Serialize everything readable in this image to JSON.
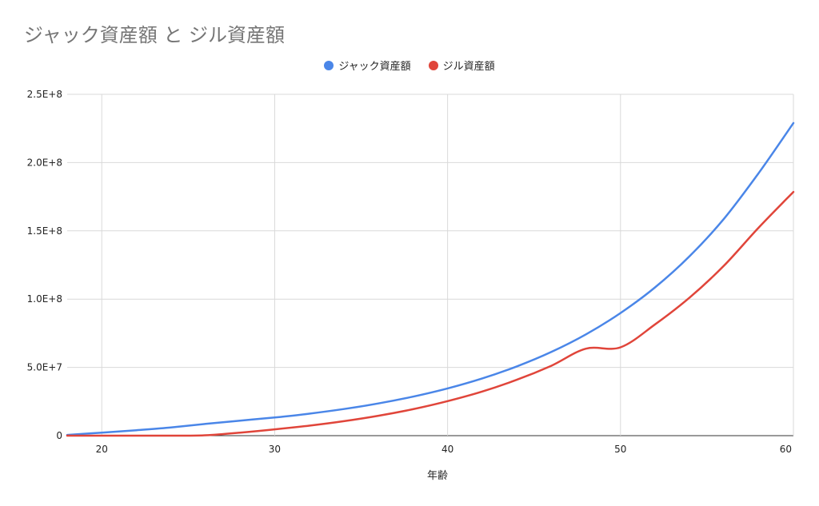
{
  "chart_data": {
    "type": "line",
    "title": "ジャック資産額 と ジル資産額",
    "xlabel": "年齢",
    "ylabel": "",
    "xlim": [
      18,
      60
    ],
    "ylim": [
      0,
      250000000
    ],
    "x_ticks": [
      20,
      30,
      40,
      50,
      60
    ],
    "y_ticks": [
      0,
      50000000,
      100000000,
      150000000,
      200000000,
      250000000
    ],
    "y_tick_labels": [
      "0",
      "5.0E+7",
      "1.0E+8",
      "1.5E+8",
      "2.0E+8",
      "2.5E+8"
    ],
    "grid": true,
    "legend_position": "top",
    "x": [
      18,
      20,
      22,
      24,
      26,
      28,
      30,
      32,
      34,
      36,
      38,
      40,
      42,
      44,
      46,
      48,
      50,
      52,
      54,
      56,
      58,
      60
    ],
    "series": [
      {
        "name": "ジャック資産額",
        "color": "#4a86e8",
        "values": [
          500000,
          2200000,
          4000000,
          6000000,
          8600000,
          11000000,
          13300000,
          16100000,
          19500000,
          23600000,
          28600000,
          34600000,
          41900000,
          50700000,
          61300000,
          74200000,
          89800000,
          108600000,
          131500000,
          159100000,
          192500000,
          229000000
        ]
      },
      {
        "name": "ジル資産額",
        "color": "#e0453a",
        "values": [
          0,
          0,
          0,
          0,
          300000,
          2200000,
          4600000,
          7300000,
          10600000,
          14600000,
          19400000,
          25300000,
          32300000,
          40900000,
          51200000,
          63700000,
          64700000,
          81500000,
          101200000,
          124700000,
          152500000,
          178500000
        ]
      }
    ]
  }
}
